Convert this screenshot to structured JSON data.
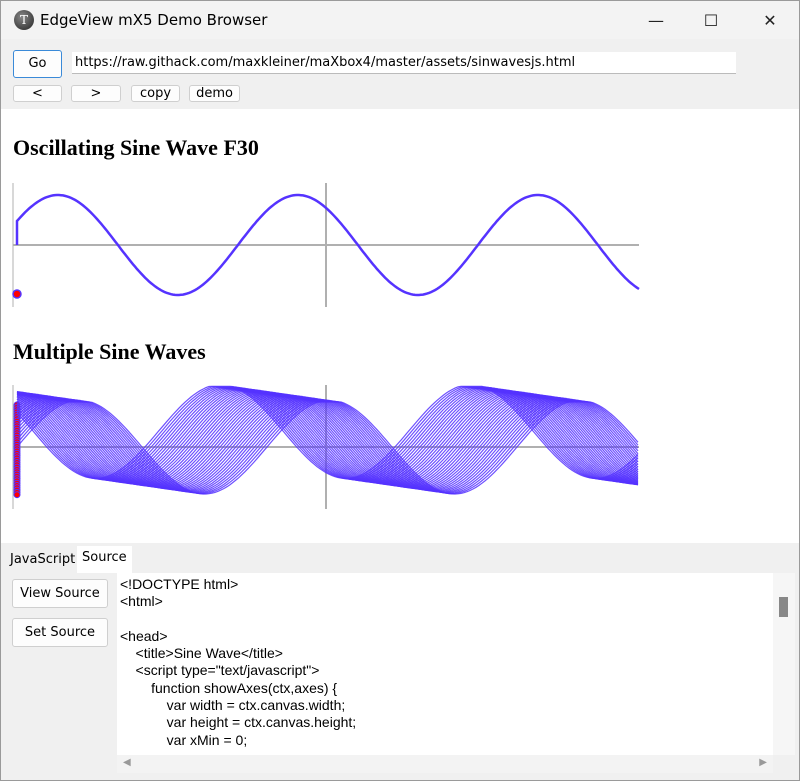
{
  "window": {
    "title": "EdgeView mX5 Demo Browser",
    "minimize": "—",
    "maximize": "☐",
    "close": "✕"
  },
  "toolbar": {
    "go": "Go",
    "url": "https://raw.githack.com/maxkleiner/maXbox4/master/assets/sinwavesjs.html",
    "back": "<",
    "forward": ">",
    "copy": "copy",
    "demo": "demo"
  },
  "page": {
    "heading1": "Oscillating Sine Wave F30",
    "heading2": "Multiple Sine Waves",
    "wave_color": "#5533ff",
    "dot_color": "#ff0000",
    "axis_color": "#b0b0b0"
  },
  "tabs": [
    {
      "label": "JavaScript"
    },
    {
      "label": "Source"
    }
  ],
  "source_panel": {
    "view_source": "View Source",
    "set_source": "Set Source",
    "lines": [
      "<!DOCTYPE html>",
      "<html>",
      "",
      "<head>",
      "    <title>Sine Wave</title>",
      "    <script type=\"text/javascript\">",
      "        function showAxes(ctx,axes) {",
      "            var width = ctx.canvas.width;",
      "            var height = ctx.canvas.height;",
      "            var xMin = 0;"
    ]
  }
}
